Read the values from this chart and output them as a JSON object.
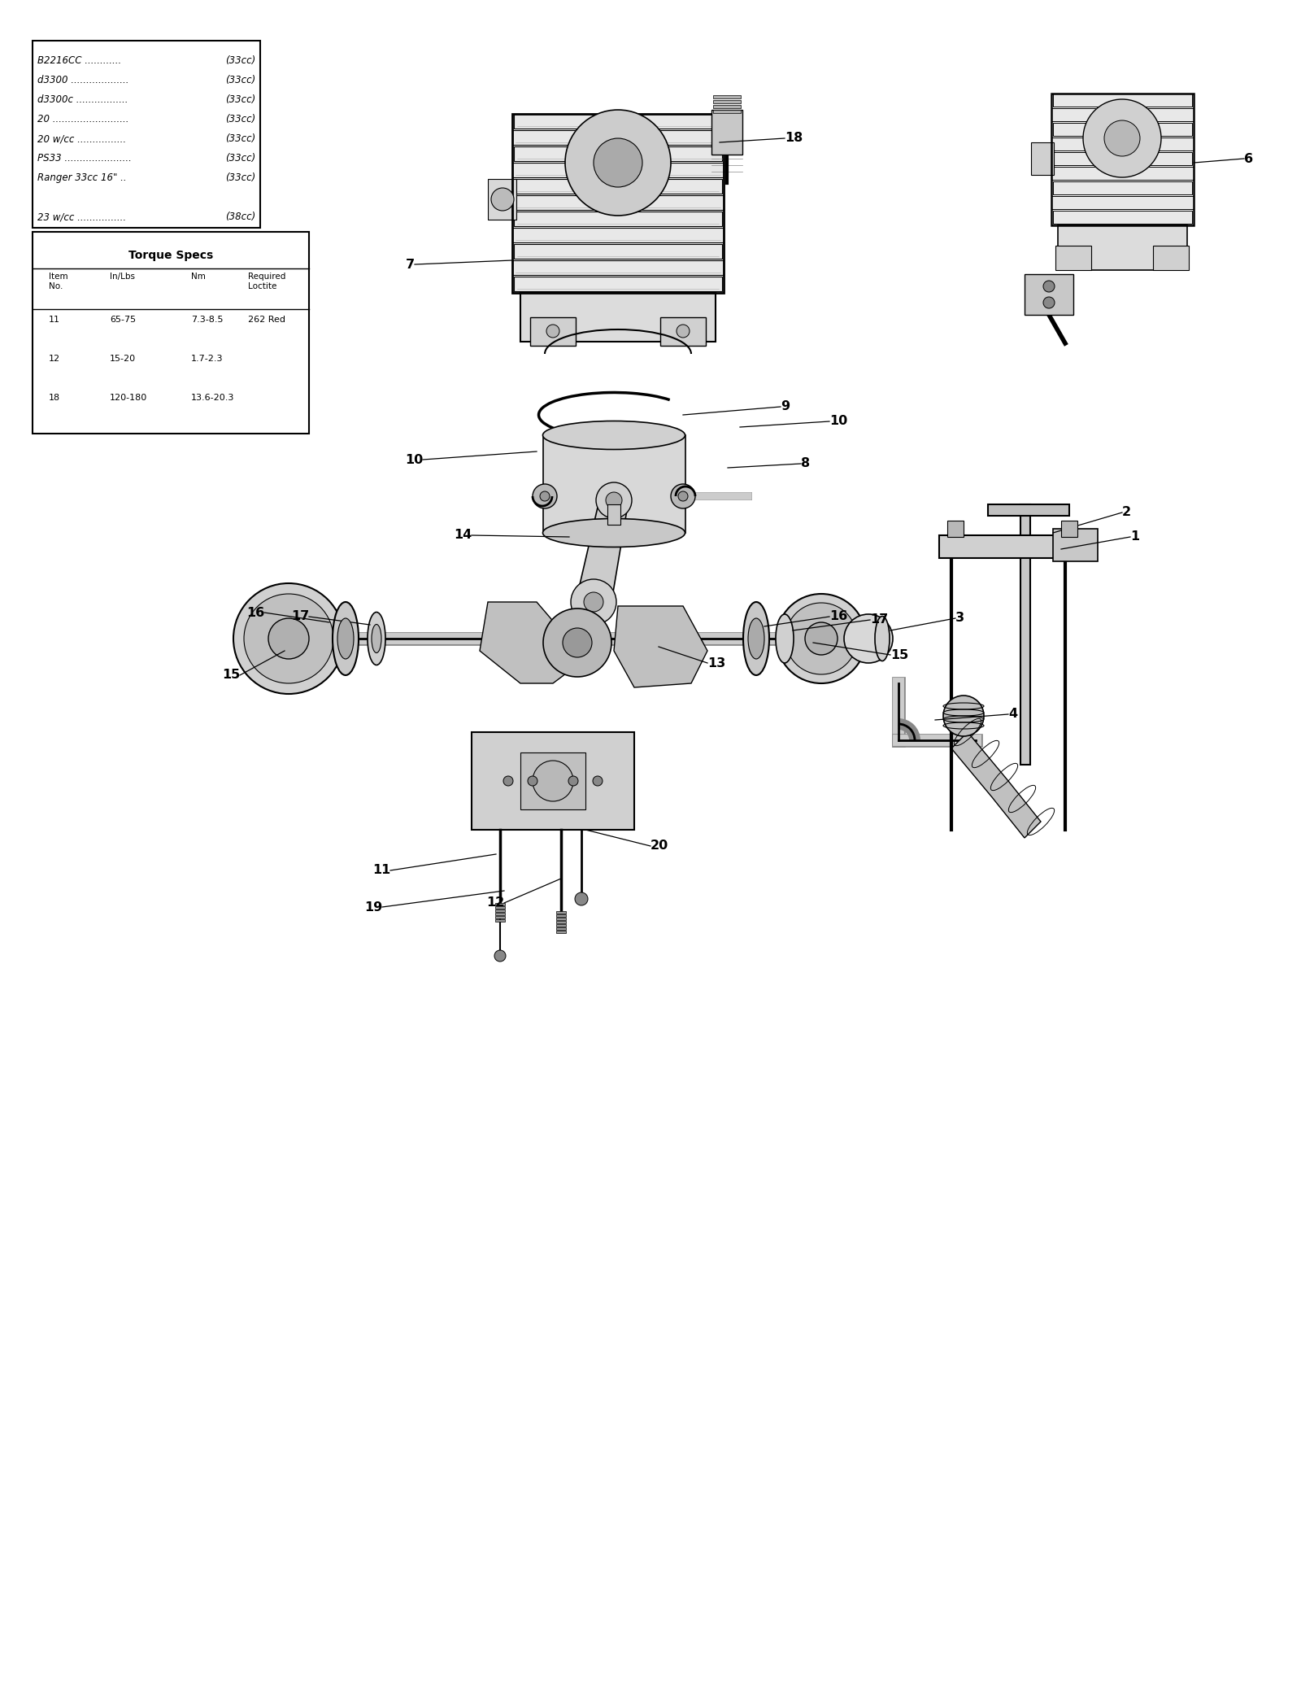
{
  "bg_color": "#ffffff",
  "fig_width": 16.0,
  "fig_height": 20.75,
  "models_lines": [
    [
      "B2216CC ............",
      "(33cc)"
    ],
    [
      "d3300 ...................",
      "(33cc)"
    ],
    [
      "d3300c .................",
      "(33cc)"
    ],
    [
      "20 .........................",
      "(33cc)"
    ],
    [
      "20 w/cc ................",
      "(33cc)"
    ],
    [
      "PS33 ......................",
      "(33cc)"
    ],
    [
      "Ranger 33cc 16\" ..",
      "(33cc)"
    ],
    [
      "",
      ""
    ],
    [
      "23 w/cc ................",
      "(38cc)"
    ]
  ],
  "torque_rows": [
    [
      "11",
      "65-75",
      "7.3-8.5",
      "262 Red"
    ],
    [
      "12",
      "15-20",
      "1.7-2.3",
      ""
    ],
    [
      "18",
      "120-180",
      "13.6-20.3",
      ""
    ]
  ]
}
